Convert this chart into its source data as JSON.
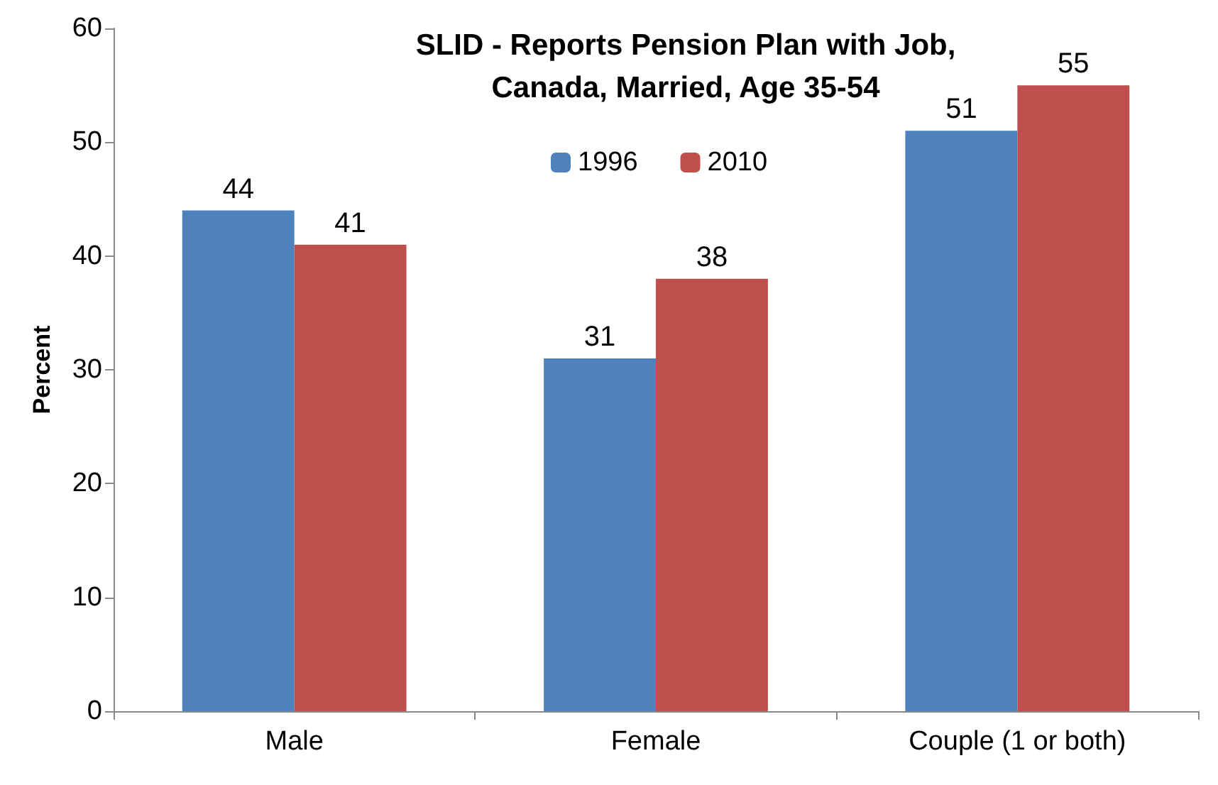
{
  "chart_data": {
    "type": "bar",
    "title": "SLID - Reports Pension Plan with Job,\nCanada, Married, Age 35-54",
    "ylabel": "Percent",
    "categories": [
      "Male",
      "Female",
      "Couple (1 or both)"
    ],
    "series": [
      {
        "name": "1996",
        "color": "#4f81bd",
        "values": [
          44,
          31,
          51
        ]
      },
      {
        "name": "2010",
        "color": "#c0504d",
        "values": [
          41,
          38,
          55
        ]
      }
    ],
    "ylim": [
      0,
      60
    ],
    "yticks": [
      0,
      10,
      20,
      30,
      40,
      50,
      60
    ],
    "grid": false,
    "legend": "top",
    "data_labels": true
  }
}
